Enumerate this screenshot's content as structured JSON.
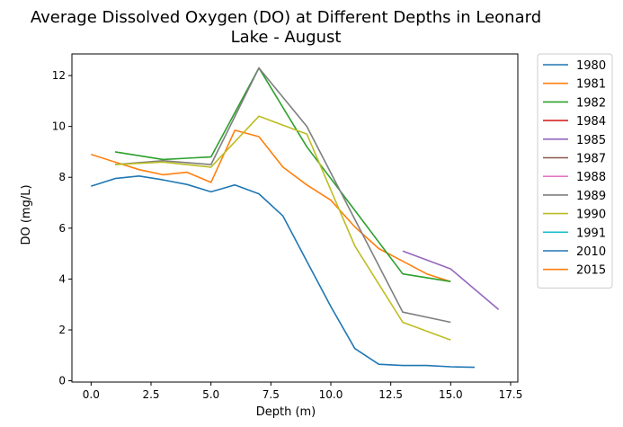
{
  "chart_data": {
    "type": "line",
    "title_lines": [
      "Average Dissolved Oxygen (DO) at Different Depths in Leonard",
      "Lake - August"
    ],
    "xlabel": "Depth (m)",
    "ylabel": "DO (mg/L)",
    "xlim": [
      -0.8,
      17.8
    ],
    "ylim": [
      -0.05,
      12.85
    ],
    "xticks": [
      0.0,
      2.5,
      5.0,
      7.5,
      10.0,
      12.5,
      15.0,
      17.5
    ],
    "xtick_labels": [
      "0.0",
      "2.5",
      "5.0",
      "7.5",
      "10.0",
      "12.5",
      "15.0",
      "17.5"
    ],
    "yticks": [
      0,
      2,
      4,
      6,
      8,
      10,
      12
    ],
    "ytick_labels": [
      "0",
      "2",
      "4",
      "6",
      "8",
      "10",
      "12"
    ],
    "grid": false,
    "legend_position": "outside-right",
    "series": [
      {
        "name": "1980",
        "color": "#1f77b4",
        "points": [
          [
            0,
            7.65
          ],
          [
            1,
            7.95
          ],
          [
            2,
            8.05
          ],
          [
            3,
            7.9
          ],
          [
            4,
            7.72
          ],
          [
            5,
            7.43
          ],
          [
            6,
            7.7
          ],
          [
            7,
            7.35
          ],
          [
            8,
            6.48
          ],
          [
            9,
            4.7
          ],
          [
            10,
            2.92
          ],
          [
            11,
            1.27
          ],
          [
            12,
            0.65
          ],
          [
            13,
            0.6
          ],
          [
            14,
            0.6
          ],
          [
            15,
            0.55
          ],
          [
            16,
            0.53
          ]
        ]
      },
      {
        "name": "1981",
        "color": "#ff7f0e",
        "points": [
          [
            0,
            8.9
          ],
          [
            1,
            8.6
          ],
          [
            2,
            8.3
          ],
          [
            3,
            8.1
          ],
          [
            4,
            8.2
          ],
          [
            5,
            7.8
          ],
          [
            6,
            9.85
          ],
          [
            7,
            9.6
          ],
          [
            8,
            8.4
          ],
          [
            9,
            7.7
          ],
          [
            10,
            7.1
          ],
          [
            11,
            6.05
          ],
          [
            12,
            5.2
          ],
          [
            13,
            4.7
          ],
          [
            14,
            4.2
          ],
          [
            15,
            3.9
          ]
        ]
      },
      {
        "name": "1982",
        "color": "#2ca02c",
        "points": [
          [
            1,
            9.0
          ],
          [
            2,
            8.85
          ],
          [
            3,
            8.7
          ],
          [
            4,
            8.75
          ],
          [
            5,
            8.8
          ],
          [
            7,
            12.3
          ],
          [
            9,
            9.2
          ],
          [
            11,
            6.7
          ],
          [
            13,
            4.2
          ],
          [
            15,
            3.9
          ]
        ]
      },
      {
        "name": "1984",
        "color": "#d62728",
        "points": []
      },
      {
        "name": "1985",
        "color": "#9467bd",
        "points": [
          [
            13,
            5.1
          ],
          [
            15,
            4.4
          ],
          [
            17,
            2.8
          ]
        ]
      },
      {
        "name": "1987",
        "color": "#8c564b",
        "points": []
      },
      {
        "name": "1988",
        "color": "#e377c2",
        "points": []
      },
      {
        "name": "1989",
        "color": "#7f7f7f",
        "points": [
          [
            1,
            8.5
          ],
          [
            3,
            8.65
          ],
          [
            5,
            8.5
          ],
          [
            7,
            12.3
          ],
          [
            9,
            10.0
          ],
          [
            13,
            2.7
          ],
          [
            15,
            2.3
          ]
        ]
      },
      {
        "name": "1990",
        "color": "#bcbd22",
        "points": [
          [
            1,
            8.5
          ],
          [
            3,
            8.6
          ],
          [
            5,
            8.4
          ],
          [
            7,
            10.4
          ],
          [
            9,
            9.7
          ],
          [
            11,
            5.3
          ],
          [
            13,
            2.3
          ],
          [
            15,
            1.6
          ]
        ]
      },
      {
        "name": "1991",
        "color": "#17becf",
        "points": []
      },
      {
        "name": "2010",
        "color": "#1f77b4",
        "points": []
      },
      {
        "name": "2015",
        "color": "#ff7f0e",
        "points": []
      }
    ]
  }
}
